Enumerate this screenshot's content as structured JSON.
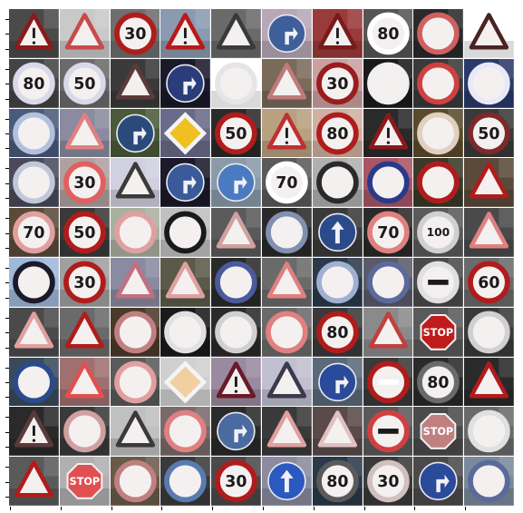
{
  "figure": {
    "rows": 10,
    "cols": 10,
    "tiles": [
      {
        "shape": "triangle",
        "fg": "#8b1a1a",
        "bg": "#4a4a4a",
        "sym": "!"
      },
      {
        "shape": "triangle",
        "fg": "#c94a4a",
        "bg": "#c9c9c9",
        "sym": ""
      },
      {
        "shape": "circle",
        "fg": "#b01c1c",
        "bg": "#6e6e6e",
        "sym": "30"
      },
      {
        "shape": "triangle",
        "fg": "#b81a1a",
        "bg": "#8a9ab0",
        "sym": "!"
      },
      {
        "shape": "triangle",
        "fg": "#3a3a3a",
        "bg": "#6a6a6a",
        "sym": ""
      },
      {
        "shape": "circle",
        "fg": "#3e5f9a",
        "bg": "#b7a7b7",
        "sym": "split"
      },
      {
        "shape": "triangle",
        "fg": "#7a1a1a",
        "bg": "#9a3a3a",
        "sym": "!"
      },
      {
        "shape": "circle",
        "fg": "#ffffff",
        "bg": "#555555",
        "sym": "80"
      },
      {
        "shape": "circle",
        "fg": "#d06060",
        "bg": "#2a2a2a",
        "sym": ""
      },
      {
        "shape": "triangle",
        "fg": "#4a2222",
        "bg": "#ffffff",
        "sym": ""
      },
      {
        "shape": "circle",
        "fg": "#d9d9e9",
        "bg": "#444444",
        "sym": "80"
      },
      {
        "shape": "circle",
        "fg": "#d9d9e9",
        "bg": "#6a6a6a",
        "sym": "50"
      },
      {
        "shape": "triangle",
        "fg": "#5a3a3a",
        "bg": "#3a3a3a",
        "sym": ""
      },
      {
        "shape": "circle",
        "fg": "#2a3c7a",
        "bg": "#1a1a2a",
        "sym": "split"
      },
      {
        "shape": "circle",
        "fg": "#e5e5e5",
        "bg": "#ffffff",
        "sym": ""
      },
      {
        "shape": "triangle",
        "fg": "#c07a7a",
        "bg": "#7a6a5a",
        "sym": ""
      },
      {
        "shape": "circle",
        "fg": "#9a1c1c",
        "bg": "#caa0a0",
        "sym": "30"
      },
      {
        "shape": "circle",
        "fg": "#f0f0f0",
        "bg": "#1a1a1a",
        "sym": ""
      },
      {
        "shape": "circle",
        "fg": "#d04040",
        "bg": "#3a3a3a",
        "sym": ""
      },
      {
        "shape": "circle",
        "fg": "#e8e8f8",
        "bg": "#2a3a6a",
        "sym": ""
      },
      {
        "shape": "circle",
        "fg": "#b0c0dd",
        "bg": "#4a5a7a",
        "sym": ""
      },
      {
        "shape": "triangle",
        "fg": "#e08080",
        "bg": "#8a8aa0",
        "sym": ""
      },
      {
        "shape": "circle",
        "fg": "#2a4a7a",
        "bg": "#4a5a3a",
        "sym": "split"
      },
      {
        "shape": "diamond",
        "fg": "#f0c020",
        "bg": "#6a6a8a",
        "sym": ""
      },
      {
        "shape": "circle",
        "fg": "#b01c1c",
        "bg": "#2a2a2a",
        "sym": "50"
      },
      {
        "shape": "triangle",
        "fg": "#c03030",
        "bg": "#b8a080",
        "sym": "!"
      },
      {
        "shape": "circle",
        "fg": "#b01c1c",
        "bg": "#d0b0a0",
        "sym": "80"
      },
      {
        "shape": "triangle",
        "fg": "#8a1a1a",
        "bg": "#2a2a2a",
        "sym": "!"
      },
      {
        "shape": "circle",
        "fg": "#e0d0c0",
        "bg": "#5a4a2a",
        "sym": ""
      },
      {
        "shape": "circle",
        "fg": "#7a2a2a",
        "bg": "#3a3a3a",
        "sym": "50"
      },
      {
        "shape": "circle",
        "fg": "#c0c8d8",
        "bg": "#4a4a5a",
        "sym": ""
      },
      {
        "shape": "circle",
        "fg": "#e06060",
        "bg": "#b0a0a0",
        "sym": "30"
      },
      {
        "shape": "triangle",
        "fg": "#3a3a3a",
        "bg": "#d0d0e0",
        "sym": ""
      },
      {
        "shape": "circle",
        "fg": "#3a5a9a",
        "bg": "#1a1a2a",
        "sym": "split"
      },
      {
        "shape": "circle",
        "fg": "#4a7ac0",
        "bg": "#8a9aaa",
        "sym": "split"
      },
      {
        "shape": "circle",
        "fg": "#ffffff",
        "bg": "#5a5a5a",
        "sym": "70"
      },
      {
        "shape": "circle",
        "fg": "#2a2a2a",
        "bg": "#b0b0b0",
        "sym": ""
      },
      {
        "shape": "circle",
        "fg": "#2a3a8a",
        "bg": "#aa5566",
        "sym": ""
      },
      {
        "shape": "circle",
        "fg": "#b01c1c",
        "bg": "#3a3a2a",
        "sym": ""
      },
      {
        "shape": "triangle",
        "fg": "#b01c1c",
        "bg": "#5a4a3a",
        "sym": ""
      },
      {
        "shape": "circle",
        "fg": "#e0a0a0",
        "bg": "#5a4a3a",
        "sym": "70"
      },
      {
        "shape": "circle",
        "fg": "#b01c1c",
        "bg": "#3a3a3a",
        "sym": "50"
      },
      {
        "shape": "circle",
        "fg": "#e0a0a0",
        "bg": "#aab0a0",
        "sym": ""
      },
      {
        "shape": "circle",
        "fg": "#1a1a1a",
        "bg": "#c0c0c0",
        "sym": ""
      },
      {
        "shape": "triangle",
        "fg": "#d0a0a0",
        "bg": "#5a5a5a",
        "sym": ""
      },
      {
        "shape": "circle",
        "fg": "#8090b0",
        "bg": "#2a2a2a",
        "sym": ""
      },
      {
        "shape": "circle",
        "fg": "#2a4a8a",
        "bg": "#3a3a3a",
        "sym": "up"
      },
      {
        "shape": "circle",
        "fg": "#e08080",
        "bg": "#2a2a2a",
        "sym": "70"
      },
      {
        "shape": "circle",
        "fg": "#d0d0d0",
        "bg": "#5a5a5a",
        "sym": "100"
      },
      {
        "shape": "triangle",
        "fg": "#e08080",
        "bg": "#4a4a4a",
        "sym": ""
      },
      {
        "shape": "circle",
        "fg": "#1a1a2a",
        "bg": "#a0b8d8",
        "sym": ""
      },
      {
        "shape": "circle",
        "fg": "#b01c1c",
        "bg": "#a0a0a0",
        "sym": "30"
      },
      {
        "shape": "triangle",
        "fg": "#c07080",
        "bg": "#8a8aa0",
        "sym": ""
      },
      {
        "shape": "triangle",
        "fg": "#e0a0a0",
        "bg": "#5a5a4a",
        "sym": ""
      },
      {
        "shape": "circle",
        "fg": "#4a5a9a",
        "bg": "#2a2a2a",
        "sym": ""
      },
      {
        "shape": "triangle",
        "fg": "#e08080",
        "bg": "#6a6a6a",
        "sym": ""
      },
      {
        "shape": "circle",
        "fg": "#a0b0d0",
        "bg": "#2a3a4a",
        "sym": ""
      },
      {
        "shape": "circle",
        "fg": "#5a6a9a",
        "bg": "#5a5a6a",
        "sym": ""
      },
      {
        "shape": "circle",
        "fg": "#e0e0e0",
        "bg": "#4a4a4a",
        "sym": "-"
      },
      {
        "shape": "circle",
        "fg": "#b01c1c",
        "bg": "#6a6a6a",
        "sym": "60"
      },
      {
        "shape": "triangle",
        "fg": "#e0a0a0",
        "bg": "#4a4a4a",
        "sym": ""
      },
      {
        "shape": "triangle",
        "fg": "#b01c1c",
        "bg": "#6a6a6a",
        "sym": ""
      },
      {
        "shape": "circle",
        "fg": "#c08080",
        "bg": "#4a3a2a",
        "sym": ""
      },
      {
        "shape": "circle",
        "fg": "#e0e0e0",
        "bg": "#1a1a1a",
        "sym": ""
      },
      {
        "shape": "circle",
        "fg": "#d0d0d0",
        "bg": "#2a2a2a",
        "sym": ""
      },
      {
        "shape": "circle",
        "fg": "#e08080",
        "bg": "#6a6a6a",
        "sym": ""
      },
      {
        "shape": "circle",
        "fg": "#b01c1c",
        "bg": "#3a3a3a",
        "sym": "80"
      },
      {
        "shape": "triangle",
        "fg": "#c04040",
        "bg": "#8a8a8a",
        "sym": ""
      },
      {
        "shape": "octagon",
        "fg": "#c01c1c",
        "bg": "#5a5a5a",
        "sym": "STOP"
      },
      {
        "shape": "circle",
        "fg": "#d0d0d0",
        "bg": "#3a3a3a",
        "sym": ""
      },
      {
        "shape": "circle",
        "fg": "#2a4a8a",
        "bg": "#3a4a5a",
        "sym": ""
      },
      {
        "shape": "triangle",
        "fg": "#e05050",
        "bg": "#a07070",
        "sym": ""
      },
      {
        "shape": "circle",
        "fg": "#e0a0a0",
        "bg": "#5a5a5a",
        "sym": ""
      },
      {
        "shape": "diamond",
        "fg": "#f0d0a0",
        "bg": "#d0d0d0",
        "sym": ""
      },
      {
        "shape": "triangle",
        "fg": "#6a1a2a",
        "bg": "#9a8aa0",
        "sym": "!"
      },
      {
        "shape": "triangle",
        "fg": "#3a3a4a",
        "bg": "#c0c0d0",
        "sym": ""
      },
      {
        "shape": "circle",
        "fg": "#2a4a9a",
        "bg": "#5a6a7a",
        "sym": "split"
      },
      {
        "shape": "circle",
        "fg": "#b01c1c",
        "bg": "#3a3a3a",
        "sym": "-"
      },
      {
        "shape": "circle",
        "fg": "#6a6a6a",
        "bg": "#2a2a2a",
        "sym": "80"
      },
      {
        "shape": "triangle",
        "fg": "#b01c1c",
        "bg": "#2a2a2a",
        "sym": ""
      },
      {
        "shape": "triangle",
        "fg": "#5a3a3a",
        "bg": "#2a2a2a",
        "sym": "!"
      },
      {
        "shape": "circle",
        "fg": "#d0a0a0",
        "bg": "#3a3a3a",
        "sym": ""
      },
      {
        "shape": "triangle",
        "fg": "#3a3a3a",
        "bg": "#c0c0c0",
        "sym": ""
      },
      {
        "shape": "circle",
        "fg": "#e08080",
        "bg": "#7a6a6a",
        "sym": ""
      },
      {
        "shape": "circle",
        "fg": "#4a6aa0",
        "bg": "#2a2a2a",
        "sym": "split"
      },
      {
        "shape": "triangle",
        "fg": "#e0a0a0",
        "bg": "#3a3a3a",
        "sym": ""
      },
      {
        "shape": "triangle",
        "fg": "#e0c0c0",
        "bg": "#5a4a4a",
        "sym": ""
      },
      {
        "shape": "circle",
        "fg": "#d04040",
        "bg": "#5a5a5a",
        "sym": "-"
      },
      {
        "shape": "octagon",
        "fg": "#c08080",
        "bg": "#4a4a4a",
        "sym": "STOP"
      },
      {
        "shape": "circle",
        "fg": "#e0e0e0",
        "bg": "#6a6a6a",
        "sym": ""
      },
      {
        "shape": "triangle",
        "fg": "#b01c1c",
        "bg": "#5a5a5a",
        "sym": ""
      },
      {
        "shape": "octagon",
        "fg": "#e05050",
        "bg": "#b0b0b0",
        "sym": "STOP"
      },
      {
        "shape": "circle",
        "fg": "#c08080",
        "bg": "#6a5a4a",
        "sym": ""
      },
      {
        "shape": "circle",
        "fg": "#5a7ab0",
        "bg": "#3a3a3a",
        "sym": ""
      },
      {
        "shape": "circle",
        "fg": "#b01c1c",
        "bg": "#4a4a4a",
        "sym": "30"
      },
      {
        "shape": "circle",
        "fg": "#2a5ac0",
        "bg": "#8a8aa0",
        "sym": "up"
      },
      {
        "shape": "circle",
        "fg": "#5a5a5a",
        "bg": "#2a3a4a",
        "sym": "80"
      },
      {
        "shape": "circle",
        "fg": "#d0c0c0",
        "bg": "#3a3a3a",
        "sym": "30"
      },
      {
        "shape": "circle",
        "fg": "#2a4a9a",
        "bg": "#4a4a4a",
        "sym": "split"
      },
      {
        "shape": "circle",
        "fg": "#5a6a9a",
        "bg": "#7a8a9a",
        "sym": ""
      }
    ]
  }
}
